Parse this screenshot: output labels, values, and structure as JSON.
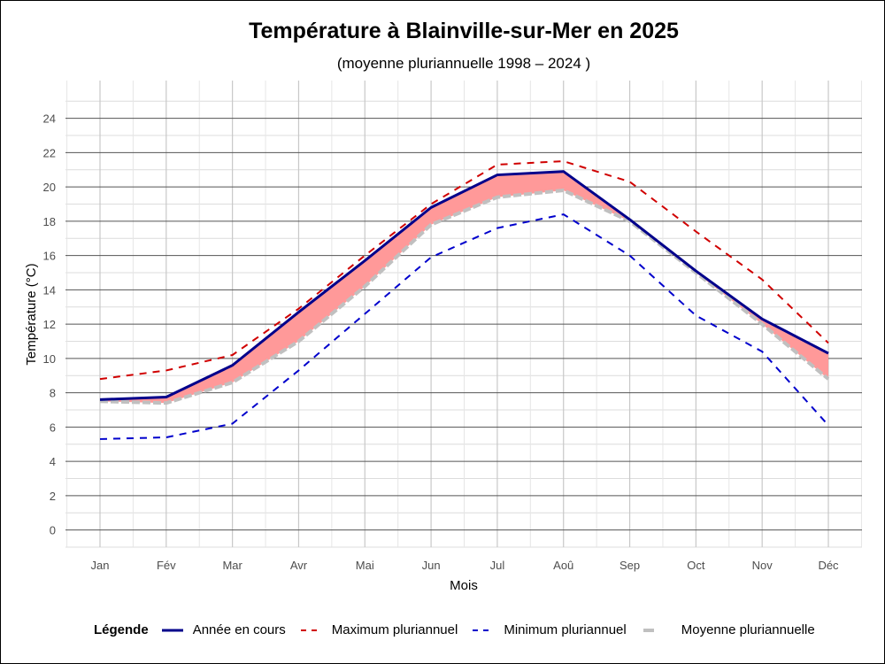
{
  "chart_data": {
    "type": "line",
    "title": "Température à Blainville-sur-Mer en 2025",
    "subtitle": "(moyenne pluriannuelle 1998 – 2024 )",
    "xlabel": "Mois",
    "ylabel": "Température (°C)",
    "categories": [
      "Jan",
      "Fév",
      "Mar",
      "Avr",
      "Mai",
      "Jun",
      "Jul",
      "Aoû",
      "Sep",
      "Oct",
      "Nov",
      "Déc"
    ],
    "yticks": [
      0,
      2,
      4,
      6,
      8,
      10,
      12,
      14,
      16,
      18,
      20,
      22,
      24
    ],
    "ylim": [
      -1,
      26.2
    ],
    "series": [
      {
        "name": "Année en cours",
        "color": "#00008b",
        "style": "solid",
        "values": [
          7.6,
          7.75,
          9.6,
          12.7,
          15.7,
          18.8,
          20.7,
          20.9,
          18.1,
          15.1,
          12.3,
          10.3
        ]
      },
      {
        "name": "Maximum pluriannuel",
        "color": "#d00000",
        "style": "dashed",
        "values": [
          8.8,
          9.3,
          10.2,
          12.9,
          16.0,
          19.0,
          21.3,
          21.5,
          20.3,
          17.4,
          14.6,
          10.9
        ]
      },
      {
        "name": "Minimum pluriannuel",
        "color": "#0000cc",
        "style": "dashed",
        "values": [
          5.3,
          5.4,
          6.2,
          9.3,
          12.6,
          15.9,
          17.6,
          18.4,
          16.0,
          12.5,
          10.4,
          6.1
        ]
      },
      {
        "name": "Moyenne pluriannuelle",
        "color": "#c0c0c0",
        "style": "thick",
        "values": [
          7.5,
          7.4,
          8.6,
          11.0,
          14.2,
          17.8,
          19.4,
          19.8,
          18.0,
          15.0,
          12.0,
          8.8
        ]
      }
    ],
    "ribbon_color": "#ff9999",
    "legend_title": "Légende",
    "legend_position": "bottom",
    "grid": true
  }
}
